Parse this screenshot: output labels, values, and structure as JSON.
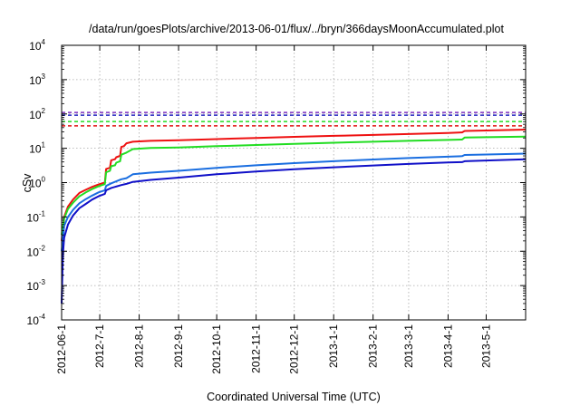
{
  "chart_data": {
    "type": "line",
    "title": "/data/run/goesPlots/archive/2013-06-01/flux/../bryn/366daysMoonAccumulated.plot",
    "xlabel": "Coordinated Universal Time (UTC)",
    "ylabel": "cSv",
    "x_scale": "time",
    "y_scale": "log",
    "xlim": [
      "2012-06-01",
      "2013-06-01"
    ],
    "ylim": [
      0.0001,
      10000
    ],
    "grid": true,
    "legend": "none",
    "x_ticks": [
      "2012-06-1",
      "2012-7-1",
      "2012-8-1",
      "2012-9-1",
      "2012-10-1",
      "2012-11-1",
      "2012-12-1",
      "2013-1-1",
      "2013-2-1",
      "2013-3-1",
      "2013-4-1",
      "2013-5-1"
    ],
    "x_tick_dates": [
      "2012-06-01",
      "2012-07-01",
      "2012-08-01",
      "2012-09-01",
      "2012-10-01",
      "2012-11-01",
      "2012-12-01",
      "2013-01-01",
      "2013-02-01",
      "2013-03-01",
      "2013-04-01",
      "2013-05-01"
    ],
    "y_ticks": [
      {
        "base": "10",
        "exp": "-4",
        "value": 0.0001
      },
      {
        "base": "10",
        "exp": "-3",
        "value": 0.001
      },
      {
        "base": "10",
        "exp": "-2",
        "value": 0.01
      },
      {
        "base": "10",
        "exp": "-1",
        "value": 0.1
      },
      {
        "base": "10",
        "exp": "0",
        "value": 1
      },
      {
        "base": "10",
        "exp": "1",
        "value": 10
      },
      {
        "base": "10",
        "exp": "2",
        "value": 100
      },
      {
        "base": "10",
        "exp": "3",
        "value": 1000
      },
      {
        "base": "10",
        "exp": "4",
        "value": 10000
      }
    ],
    "reference_lines": [
      {
        "color": "#7f2fbf",
        "value": 110
      },
      {
        "color": "#2020c0",
        "value": 92
      },
      {
        "color": "#22dd22",
        "value": 60
      },
      {
        "color": "#e01010",
        "value": 45
      }
    ],
    "series": [
      {
        "color": "#ee1111",
        "points": [
          [
            "2012-06-01",
            0.02
          ],
          [
            "2012-06-03",
            0.1
          ],
          [
            "2012-06-06",
            0.2
          ],
          [
            "2012-06-10",
            0.32
          ],
          [
            "2012-06-15",
            0.5
          ],
          [
            "2012-06-20",
            0.62
          ],
          [
            "2012-06-25",
            0.75
          ],
          [
            "2012-06-30",
            0.88
          ],
          [
            "2012-07-05",
            1.0
          ],
          [
            "2012-07-06",
            2.5
          ],
          [
            "2012-07-09",
            2.7
          ],
          [
            "2012-07-10",
            4.5
          ],
          [
            "2012-07-13",
            4.8
          ],
          [
            "2012-07-14",
            5.5
          ],
          [
            "2012-07-17",
            6.0
          ],
          [
            "2012-07-18",
            11.0
          ],
          [
            "2012-07-20",
            11.5
          ],
          [
            "2012-07-22",
            14.0
          ],
          [
            "2012-07-27",
            15.5
          ],
          [
            "2012-08-10",
            16.5
          ],
          [
            "2012-09-01",
            17.2
          ],
          [
            "2012-10-01",
            18.5
          ],
          [
            "2012-11-01",
            20.0
          ],
          [
            "2012-12-01",
            21.5
          ],
          [
            "2013-01-01",
            23.0
          ],
          [
            "2013-02-01",
            24.5
          ],
          [
            "2013-03-01",
            26.0
          ],
          [
            "2013-04-01",
            28.0
          ],
          [
            "2013-04-12",
            29.0
          ],
          [
            "2013-04-14",
            32.0
          ],
          [
            "2013-05-01",
            33.0
          ],
          [
            "2013-06-01",
            35.0
          ]
        ]
      },
      {
        "color": "#22dd22",
        "points": [
          [
            "2012-06-01",
            0.03
          ],
          [
            "2012-06-03",
            0.09
          ],
          [
            "2012-06-06",
            0.17
          ],
          [
            "2012-06-10",
            0.26
          ],
          [
            "2012-06-15",
            0.4
          ],
          [
            "2012-06-20",
            0.52
          ],
          [
            "2012-06-25",
            0.65
          ],
          [
            "2012-06-30",
            0.78
          ],
          [
            "2012-07-05",
            0.9
          ],
          [
            "2012-07-06",
            2.0
          ],
          [
            "2012-07-09",
            2.2
          ],
          [
            "2012-07-10",
            3.0
          ],
          [
            "2012-07-13",
            3.2
          ],
          [
            "2012-07-14",
            3.8
          ],
          [
            "2012-07-17",
            4.2
          ],
          [
            "2012-07-18",
            6.5
          ],
          [
            "2012-07-22",
            7.5
          ],
          [
            "2012-07-27",
            9.5
          ],
          [
            "2012-08-10",
            10.2
          ],
          [
            "2012-09-01",
            10.6
          ],
          [
            "2012-10-01",
            11.5
          ],
          [
            "2012-11-01",
            12.5
          ],
          [
            "2012-12-01",
            13.5
          ],
          [
            "2013-01-01",
            14.5
          ],
          [
            "2013-02-01",
            15.5
          ],
          [
            "2013-03-01",
            16.5
          ],
          [
            "2013-04-01",
            17.5
          ],
          [
            "2013-04-12",
            18.0
          ],
          [
            "2013-04-14",
            20.5
          ],
          [
            "2013-05-01",
            21.0
          ],
          [
            "2013-06-01",
            22.0
          ]
        ]
      },
      {
        "color": "#1a6ee0",
        "points": [
          [
            "2012-06-01",
            0.01
          ],
          [
            "2012-06-03",
            0.055
          ],
          [
            "2012-06-06",
            0.1
          ],
          [
            "2012-06-10",
            0.16
          ],
          [
            "2012-06-15",
            0.25
          ],
          [
            "2012-06-20",
            0.33
          ],
          [
            "2012-06-25",
            0.42
          ],
          [
            "2012-06-30",
            0.52
          ],
          [
            "2012-07-05",
            0.6
          ],
          [
            "2012-07-06",
            0.8
          ],
          [
            "2012-07-10",
            0.95
          ],
          [
            "2012-07-18",
            1.25
          ],
          [
            "2012-07-22",
            1.35
          ],
          [
            "2012-07-27",
            1.75
          ],
          [
            "2012-08-10",
            1.95
          ],
          [
            "2012-09-01",
            2.2
          ],
          [
            "2012-10-01",
            2.7
          ],
          [
            "2012-11-01",
            3.2
          ],
          [
            "2012-12-01",
            3.7
          ],
          [
            "2013-01-01",
            4.2
          ],
          [
            "2013-02-01",
            4.7
          ],
          [
            "2013-03-01",
            5.2
          ],
          [
            "2013-04-01",
            5.7
          ],
          [
            "2013-04-12",
            5.9
          ],
          [
            "2013-04-14",
            6.4
          ],
          [
            "2013-05-01",
            6.6
          ],
          [
            "2013-06-01",
            7.0
          ]
        ]
      },
      {
        "color": "#1010c8",
        "points": [
          [
            "2012-06-01",
            0.0003
          ],
          [
            "2012-06-02",
            0.008
          ],
          [
            "2012-06-03",
            0.025
          ],
          [
            "2012-06-06",
            0.06
          ],
          [
            "2012-06-10",
            0.11
          ],
          [
            "2012-06-15",
            0.18
          ],
          [
            "2012-06-20",
            0.24
          ],
          [
            "2012-06-25",
            0.32
          ],
          [
            "2012-06-30",
            0.4
          ],
          [
            "2012-07-05",
            0.47
          ],
          [
            "2012-07-06",
            0.6
          ],
          [
            "2012-07-10",
            0.7
          ],
          [
            "2012-07-18",
            0.85
          ],
          [
            "2012-07-22",
            0.92
          ],
          [
            "2012-07-27",
            1.05
          ],
          [
            "2012-08-10",
            1.2
          ],
          [
            "2012-09-01",
            1.4
          ],
          [
            "2012-10-01",
            1.75
          ],
          [
            "2012-11-01",
            2.1
          ],
          [
            "2012-12-01",
            2.45
          ],
          [
            "2013-01-01",
            2.8
          ],
          [
            "2013-02-01",
            3.15
          ],
          [
            "2013-03-01",
            3.5
          ],
          [
            "2013-04-01",
            3.85
          ],
          [
            "2013-04-12",
            3.95
          ],
          [
            "2013-04-14",
            4.2
          ],
          [
            "2013-05-01",
            4.4
          ],
          [
            "2013-06-01",
            4.8
          ]
        ]
      }
    ]
  }
}
